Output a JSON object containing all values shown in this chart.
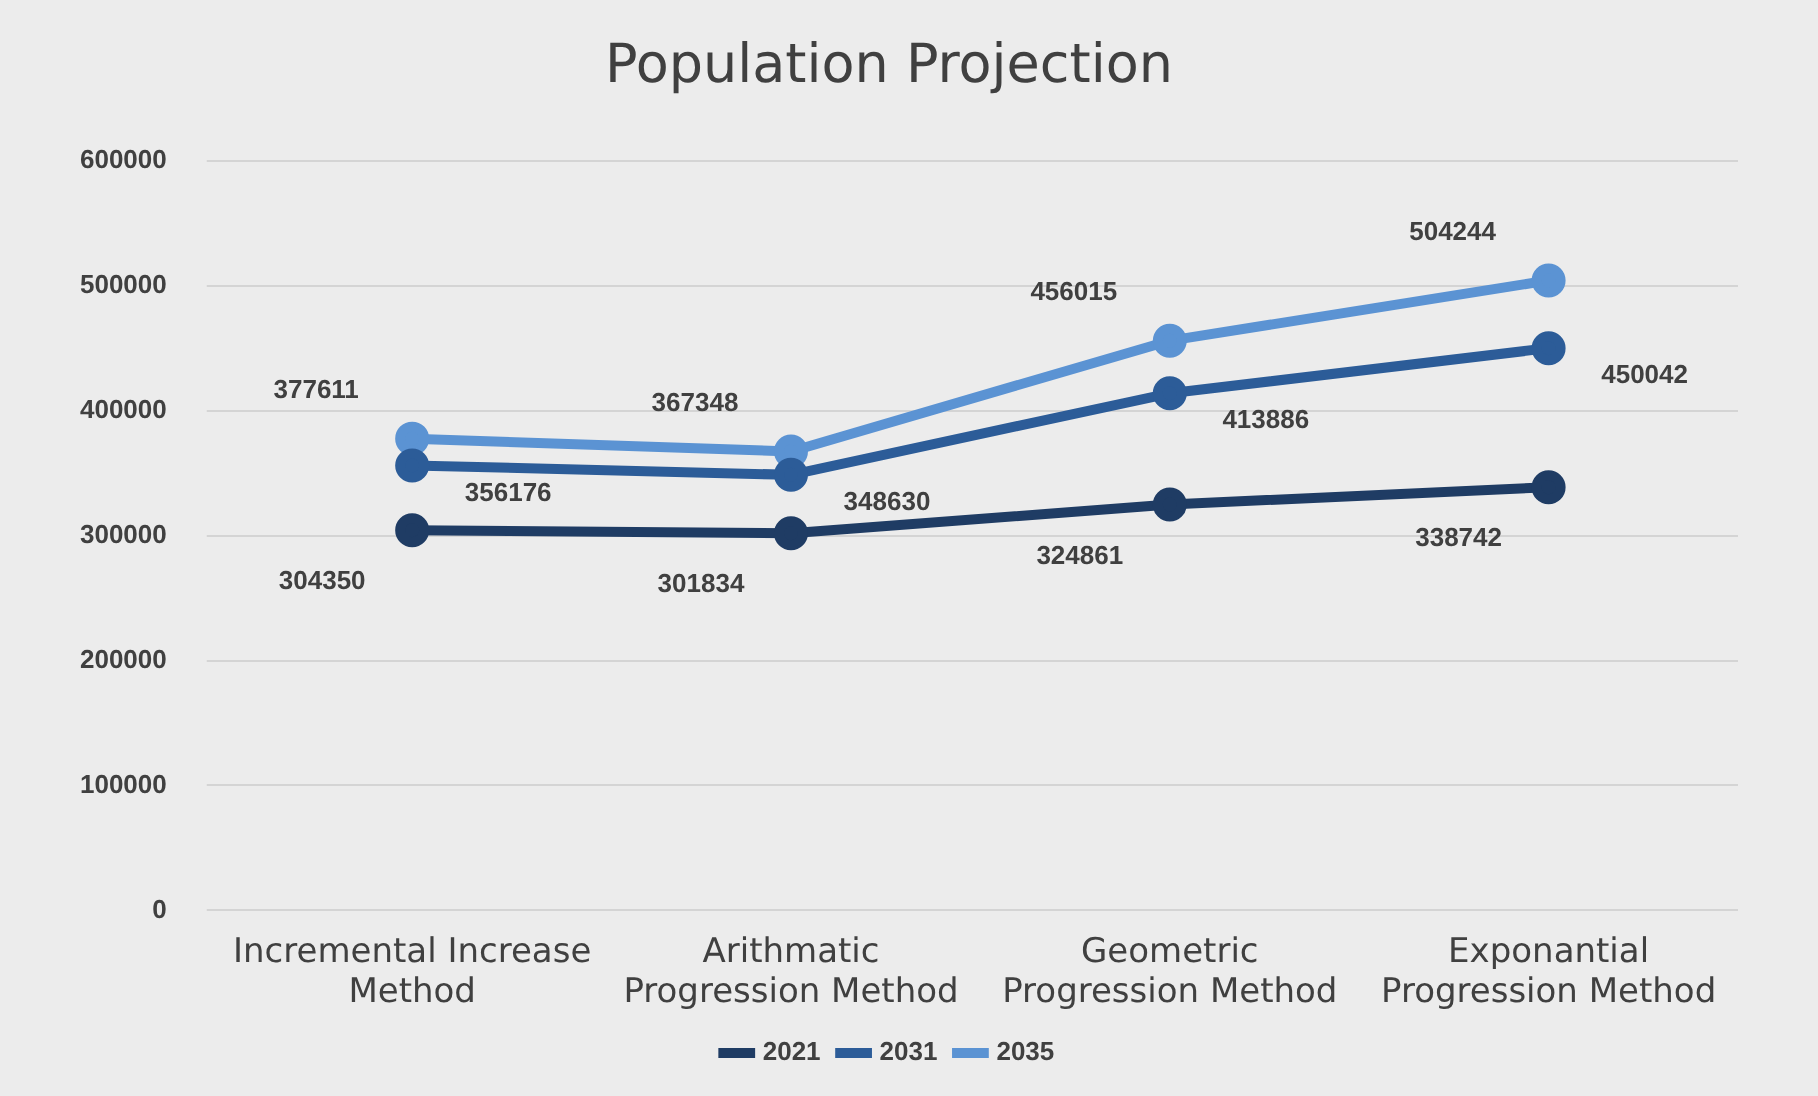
{
  "chart_data": {
    "type": "line",
    "title": "Population Projection",
    "categories": [
      "Incremental Increase Method",
      "Arithmatic Progression Method",
      "Geometric Progression Method",
      "Exponantial Progression Method"
    ],
    "series": [
      {
        "name": "2021",
        "color": "#1f3c64",
        "values": [
          304350,
          301834,
          324861,
          338742
        ]
      },
      {
        "name": "2031",
        "color": "#2c5c98",
        "values": [
          356176,
          348630,
          413886,
          450042
        ]
      },
      {
        "name": "2035",
        "color": "#5b93d3",
        "values": [
          377611,
          367348,
          456015,
          504244
        ]
      }
    ],
    "ylim": [
      0,
      600000
    ],
    "yticks": [
      0,
      100000,
      200000,
      300000,
      400000,
      500000,
      600000
    ],
    "grid": "y",
    "legend": "bottom",
    "marker": "circle",
    "line_style": "solid",
    "data_labels": true
  }
}
